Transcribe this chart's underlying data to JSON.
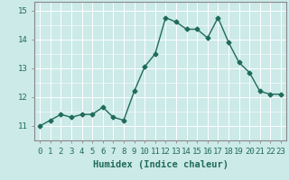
{
  "x": [
    0,
    1,
    2,
    3,
    4,
    5,
    6,
    7,
    8,
    9,
    10,
    11,
    12,
    13,
    14,
    15,
    16,
    17,
    18,
    19,
    20,
    21,
    22,
    23
  ],
  "y": [
    11.0,
    11.2,
    11.4,
    11.3,
    11.4,
    11.4,
    11.65,
    11.3,
    11.2,
    12.2,
    13.05,
    13.5,
    14.75,
    14.6,
    14.35,
    14.35,
    14.05,
    14.75,
    13.9,
    13.2,
    12.85,
    12.2,
    12.1,
    12.1
  ],
  "line_color": "#1f6b5a",
  "marker": "D",
  "marker_size": 2.5,
  "bg_color": "#cceae7",
  "grid_color": "#ffffff",
  "xlabel": "Humidex (Indice chaleur)",
  "ylim": [
    10.5,
    15.3
  ],
  "xlim": [
    -0.5,
    23.5
  ],
  "yticks": [
    11,
    12,
    13,
    14,
    15
  ],
  "xticks": [
    0,
    1,
    2,
    3,
    4,
    5,
    6,
    7,
    8,
    9,
    10,
    11,
    12,
    13,
    14,
    15,
    16,
    17,
    18,
    19,
    20,
    21,
    22,
    23
  ],
  "tick_color": "#1f6b5a",
  "tick_fontsize": 6.5,
  "xlabel_fontsize": 7.5,
  "linewidth": 1.0,
  "spine_color": "#888888"
}
